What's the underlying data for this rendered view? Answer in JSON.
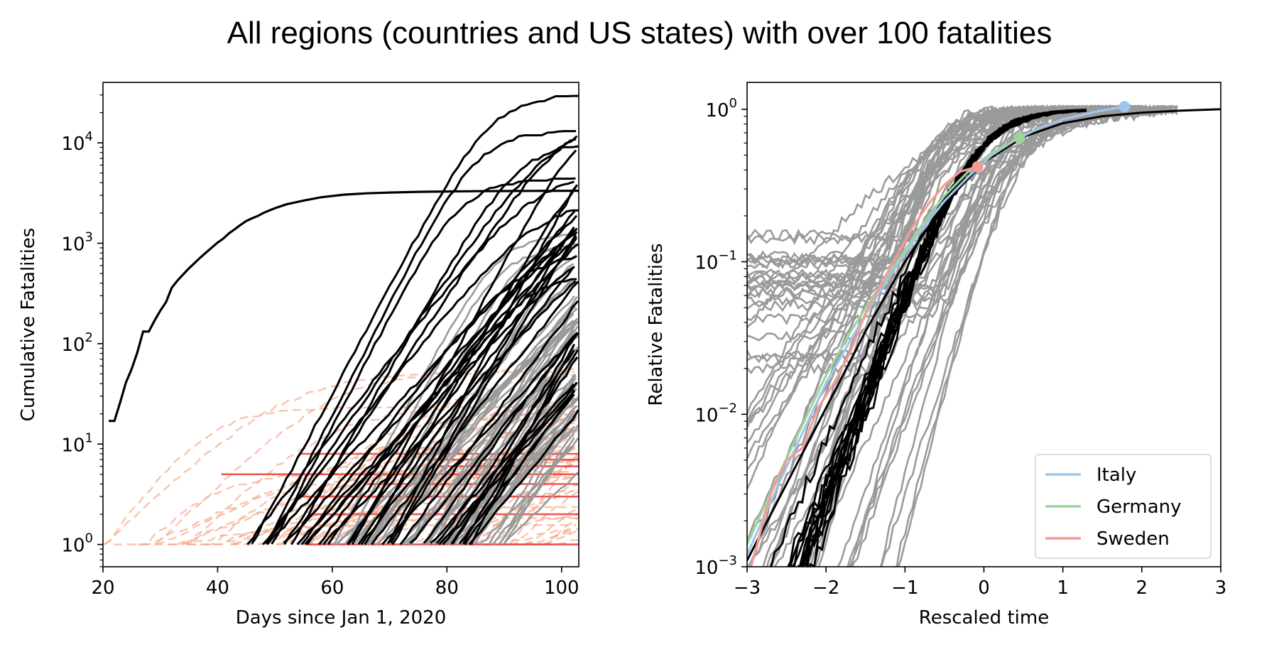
{
  "figure": {
    "title": "All regions (countries and US states) with over 100 fatalities"
  },
  "chart_data": [
    {
      "type": "line",
      "title": "",
      "xlabel": "Days since Jan 1, 2020",
      "ylabel": "Cumulative Fatalities",
      "xlim": [
        20,
        103
      ],
      "ylim": [
        0.6,
        40000
      ],
      "yscale": "log",
      "grid": false,
      "xticks": [
        "20",
        "40",
        "60",
        "80",
        "100"
      ],
      "yticks": [
        {
          "base": "10",
          "exp": "0",
          "value": 1
        },
        {
          "base": "10",
          "exp": "1",
          "value": 10
        },
        {
          "base": "10",
          "exp": "2",
          "value": 100
        },
        {
          "base": "10",
          "exp": "3",
          "value": 1000
        },
        {
          "base": "10",
          "exp": "4",
          "value": 10000
        }
      ],
      "series_groups": [
        {
          "style": "black solid",
          "color": "#000000",
          "description": "regions with over 100 fatalities"
        },
        {
          "style": "gray solid",
          "color": "#9a9a9a"
        },
        {
          "style": "red/orange dashed",
          "color": "#f4a582"
        },
        {
          "style": "red solid",
          "color": "#e8302a"
        }
      ],
      "highlight_series": [
        {
          "x": [
            21,
            22,
            23,
            24,
            25,
            26,
            27,
            28,
            29,
            30,
            31,
            32,
            33,
            34,
            35,
            36,
            37,
            38,
            39,
            40,
            41,
            42,
            43,
            44,
            45,
            46,
            47,
            48,
            49,
            50,
            52,
            55,
            58,
            62,
            66,
            70,
            75,
            80,
            85,
            90,
            95,
            100,
            103
          ],
          "y": [
            17,
            17,
            26,
            41,
            56,
            82,
            132,
            132,
            170,
            213,
            259,
            361,
            425,
            490,
            563,
            637,
            722,
            811,
            908,
            1016,
            1113,
            1259,
            1380,
            1523,
            1665,
            1770,
            1868,
            2004,
            2118,
            2236,
            2442,
            2663,
            2870,
            3046,
            3140,
            3200,
            3250,
            3280,
            3300,
            3310,
            3320,
            3325,
            3330
          ]
        }
      ]
    },
    {
      "type": "line",
      "title": "",
      "xlabel": "Rescaled time",
      "ylabel": "Relative Fatalities",
      "xlim": [
        -3,
        3
      ],
      "ylim": [
        0.001,
        1.5
      ],
      "yscale": "log",
      "grid": false,
      "xticks": [
        "−3",
        "−2",
        "−1",
        "0",
        "1",
        "2",
        "3"
      ],
      "yticks": [
        {
          "base": "10",
          "exp": "−3",
          "value": 0.001
        },
        {
          "base": "10",
          "exp": "−2",
          "value": 0.01
        },
        {
          "base": "10",
          "exp": "−1",
          "value": 0.1
        },
        {
          "base": "10",
          "exp": "0",
          "value": 1
        }
      ],
      "legend_position": "lower-right",
      "series": [
        {
          "name": "Italy",
          "color": "#9ec6ec",
          "x": [
            -3.0,
            -2.6,
            -2.3,
            -2.0,
            -1.7,
            -1.4,
            -1.1,
            -0.8,
            -0.5,
            -0.2,
            0.1,
            0.4,
            0.7,
            1.0,
            1.4,
            1.78
          ],
          "y": [
            0.0012,
            0.0035,
            0.0075,
            0.016,
            0.03,
            0.055,
            0.095,
            0.16,
            0.25,
            0.36,
            0.5,
            0.63,
            0.75,
            0.86,
            0.96,
            1.04
          ],
          "end_marker": true
        },
        {
          "name": "Germany",
          "color": "#9dd49b",
          "x": [
            -3.0,
            -2.6,
            -2.3,
            -2.0,
            -1.7,
            -1.4,
            -1.1,
            -0.8,
            -0.5,
            -0.2,
            0.1,
            0.45
          ],
          "y": [
            0.0014,
            0.004,
            0.0085,
            0.018,
            0.034,
            0.06,
            0.1,
            0.17,
            0.27,
            0.39,
            0.52,
            0.65
          ],
          "end_marker": true
        },
        {
          "name": "Sweden",
          "color": "#f49c94",
          "x": [
            -2.95,
            -2.7,
            -2.5,
            -2.3,
            -2.1,
            -1.9,
            -1.7,
            -1.5,
            -1.3,
            -1.1,
            -0.9,
            -0.7,
            -0.5,
            -0.3,
            -0.08
          ],
          "y": [
            0.001,
            0.003,
            0.005,
            0.006,
            0.011,
            0.016,
            0.025,
            0.046,
            0.072,
            0.11,
            0.17,
            0.24,
            0.32,
            0.39,
            0.42
          ],
          "end_marker": true
        }
      ],
      "reference_curve": {
        "name": "",
        "color": "#000000",
        "x": [
          -3.0,
          -2.5,
          -2.0,
          -1.5,
          -1.0,
          -0.5,
          0.0,
          0.5,
          1.0,
          1.5,
          2.0,
          2.5,
          3.0
        ],
        "y": [
          0.0011,
          0.0035,
          0.011,
          0.035,
          0.1,
          0.24,
          0.45,
          0.66,
          0.81,
          0.9,
          0.95,
          0.98,
          1.0
        ]
      },
      "background_series_color": "#9a9a9a"
    }
  ]
}
